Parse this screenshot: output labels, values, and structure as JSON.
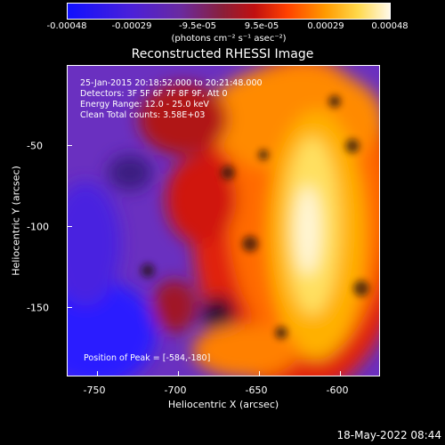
{
  "colorbar": {
    "tick_labels": [
      "-0.00048",
      "-0.00029",
      "-9.5e-05",
      "9.5e-05",
      "0.00029",
      "0.00048"
    ],
    "units": "(photons cm⁻² s⁻¹ asec⁻²)",
    "gradient_colors": [
      "#1010ff",
      "#6a2aa0",
      "#c01010",
      "#ff9a00",
      "#fff9e8"
    ]
  },
  "plot": {
    "title": "Reconstructed RHESSI Image",
    "annotations": {
      "time_range": "25-Jan-2015 20:18:52.000 to 20:21:48.000",
      "detectors": "Detectors: 3F 5F 6F 7F 8F 9F, Att 0",
      "energy": "Energy Range: 12.0 - 25.0 keV",
      "method": "Clean     Total counts: 3.58E+03",
      "peak": "Position of Peak = [-584,-180]"
    },
    "x_axis": {
      "label": "Heliocentric X (arcsec)",
      "ticks": [
        "-750",
        "-700",
        "-650",
        "-600"
      ]
    },
    "y_axis": {
      "label": "Heliocentric Y (arcsec)",
      "ticks": [
        "-50",
        "-100",
        "-150"
      ]
    }
  },
  "footer": {
    "date": "18-May-2022 08:44"
  }
}
